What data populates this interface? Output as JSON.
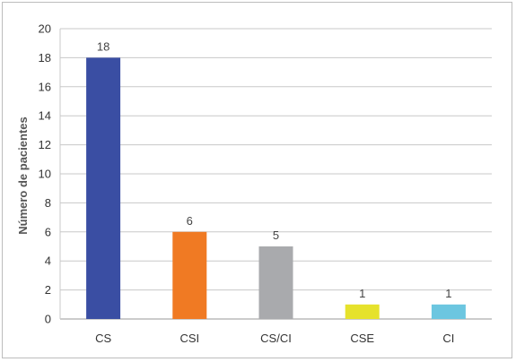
{
  "chart_data": {
    "type": "bar",
    "categories": [
      "CS",
      "CSI",
      "CS/CI",
      "CSE",
      "CI"
    ],
    "values": [
      18,
      6,
      5,
      1,
      1
    ],
    "colors": [
      "#3a4ea3",
      "#f07a23",
      "#a9aaad",
      "#e6e22c",
      "#6cc6e0"
    ],
    "ylabel": "Número de pacientes",
    "xlabel": "",
    "ylim": [
      0,
      20
    ],
    "yticks": [
      0,
      2,
      4,
      6,
      8,
      10,
      12,
      14,
      16,
      18,
      20
    ],
    "grid": true,
    "data_labels": true
  }
}
